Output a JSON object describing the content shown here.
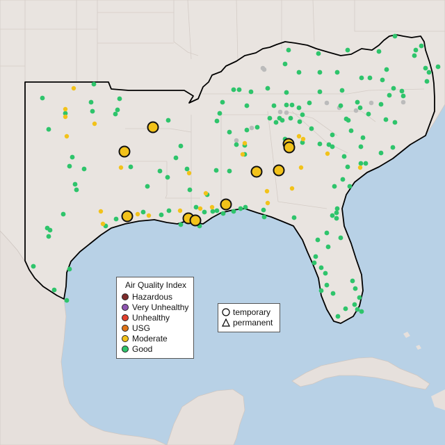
{
  "legend": {
    "title": "Air Quality Index",
    "items": [
      {
        "label": "Hazardous",
        "color": "#7e2b2b"
      },
      {
        "label": "Very Unhealthy",
        "color": "#8e55b0"
      },
      {
        "label": "Unhealthy",
        "color": "#e3402e"
      },
      {
        "label": "USG",
        "color": "#e07418"
      },
      {
        "label": "Moderate",
        "color": "#f2c21a"
      },
      {
        "label": "Good",
        "color": "#2ec46b"
      }
    ]
  },
  "shape_legend": {
    "temporary": "temporary",
    "permanent": "permanent"
  },
  "colors": {
    "water": "#b8d1e6",
    "land": "#e9e4e0",
    "good": "#2ec46b",
    "moderate": "#f2c21a",
    "offline": "#bbbbbb"
  }
}
